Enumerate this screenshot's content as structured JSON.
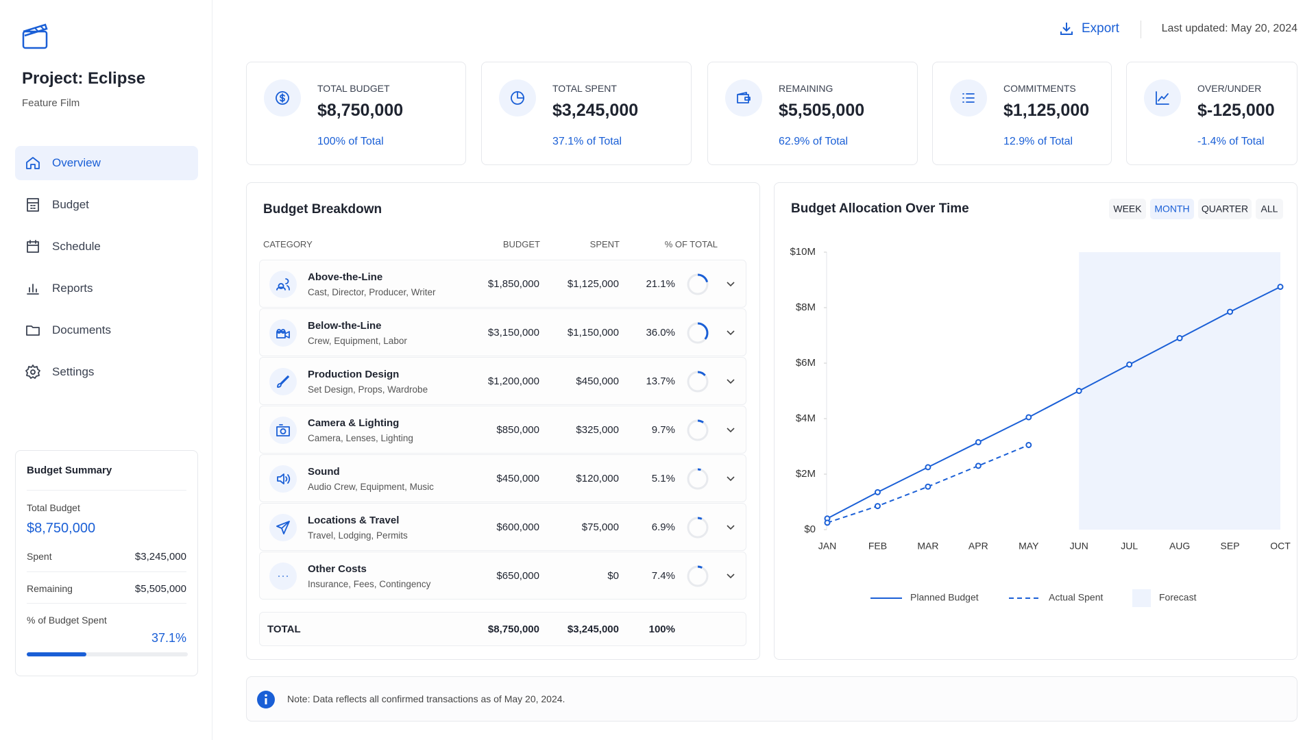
{
  "sidebar": {
    "project": "Project: Eclipse",
    "subtitle": "Feature Film",
    "nav": [
      "Overview",
      "Budget",
      "Schedule",
      "Reports",
      "Documents",
      "Settings"
    ],
    "active_nav": 0
  },
  "summary": {
    "title": "Budget Summary",
    "total_label": "Total Budget",
    "total": "$8,750,000",
    "spent_label": "Spent",
    "spent": "$3,245,000",
    "remaining_label": "Remaining",
    "remaining": "$5,505,000",
    "pct_label": "% of Budget Spent",
    "pct": 37.1,
    "pct_text": "37.1%"
  },
  "topbar": {
    "export": "Export",
    "updated": "Last updated: May 20, 2024"
  },
  "kpis": [
    {
      "label": "TOTAL BUDGET",
      "value": "$8,750,000",
      "sub": "100% of Total"
    },
    {
      "label": "TOTAL SPENT",
      "value": "$3,245,000",
      "sub": "37.1% of Total"
    },
    {
      "label": "REMAINING",
      "value": "$5,505,000",
      "sub": "62.9% of Total"
    },
    {
      "label": "COMMITMENTS",
      "value": "$1,125,000",
      "sub": "12.9% of Total"
    },
    {
      "label": "OVER/UNDER",
      "value": "$-125,000",
      "sub": "-1.4% of Total"
    }
  ],
  "breakdown": {
    "title": "Budget Breakdown",
    "columns": [
      "CATEGORY",
      "BUDGET",
      "SPENT",
      "% OF TOTAL"
    ],
    "rows": [
      {
        "name": "Above-the-Line",
        "desc": "Cast, Director, Producer, Writer",
        "budget": "$1,850,000",
        "spent": "$1,125,000",
        "pct": 21.1,
        "pct_label": "21.1%"
      },
      {
        "name": "Below-the-Line",
        "desc": "Crew, Equipment, Labor",
        "budget": "$3,150,000",
        "spent": "$1,150,000",
        "pct": 36.0,
        "pct_label": "36.0%"
      },
      {
        "name": "Production Design",
        "desc": "Set Design, Props, Wardrobe",
        "budget": "$1,200,000",
        "spent": "$450,000",
        "pct": 13.7,
        "pct_label": "13.7%"
      },
      {
        "name": "Camera & Lighting",
        "desc": "Camera, Lenses, Lighting",
        "budget": "$850,000",
        "spent": "$325,000",
        "pct": 9.7,
        "pct_label": "9.7%"
      },
      {
        "name": "Sound",
        "desc": "Audio Crew, Equipment, Music",
        "budget": "$450,000",
        "spent": "$120,000",
        "pct": 5.1,
        "pct_label": "5.1%"
      },
      {
        "name": "Locations & Travel",
        "desc": "Travel, Lodging, Permits",
        "budget": "$600,000",
        "spent": "$75,000",
        "pct": 6.9,
        "pct_label": "6.9%"
      },
      {
        "name": "Other Costs",
        "desc": "Insurance, Fees, Contingency",
        "budget": "$650,000",
        "spent": "$0",
        "pct": 7.4,
        "pct_label": "7.4%"
      }
    ],
    "total": {
      "label": "TOTAL",
      "budget": "$8,750,000",
      "spent": "$3,245,000",
      "pct": "100%"
    }
  },
  "chart_data": {
    "type": "line",
    "title": "Budget Allocation Over Time",
    "ranges": [
      "WEEK",
      "MONTH",
      "QUARTER",
      "ALL"
    ],
    "active_range": 1,
    "categories": [
      "JAN",
      "FEB",
      "MAR",
      "APR",
      "MAY",
      "JUN",
      "JUL",
      "AUG",
      "SEP",
      "OCT"
    ],
    "series": [
      {
        "name": "Planned Budget",
        "color": "#1a5fd6",
        "dashed": false,
        "values": [
          0.4,
          1.35,
          2.25,
          3.15,
          4.05,
          5.0,
          5.95,
          6.9,
          7.85,
          8.75
        ]
      },
      {
        "name": "Actual Spent",
        "color": "#1a5fd6",
        "dashed": true,
        "values": [
          0.25,
          0.85,
          1.55,
          2.3,
          3.05,
          null,
          null,
          null,
          null,
          null
        ]
      }
    ],
    "forecast": {
      "name": "Forecast",
      "from": "JUN",
      "to": "OCT",
      "color": "#eef3fd"
    },
    "ylim": [
      0,
      10
    ],
    "yticks": [
      {
        "value": 0,
        "label": "$0"
      },
      {
        "value": 2,
        "label": "$2M"
      },
      {
        "value": 4,
        "label": "$4M"
      },
      {
        "value": 6,
        "label": "$6M"
      },
      {
        "value": 8,
        "label": "$8M"
      },
      {
        "value": 10,
        "label": "$10M"
      }
    ]
  },
  "note": "Note: Data reflects all confirmed transactions as of May 20, 2024."
}
